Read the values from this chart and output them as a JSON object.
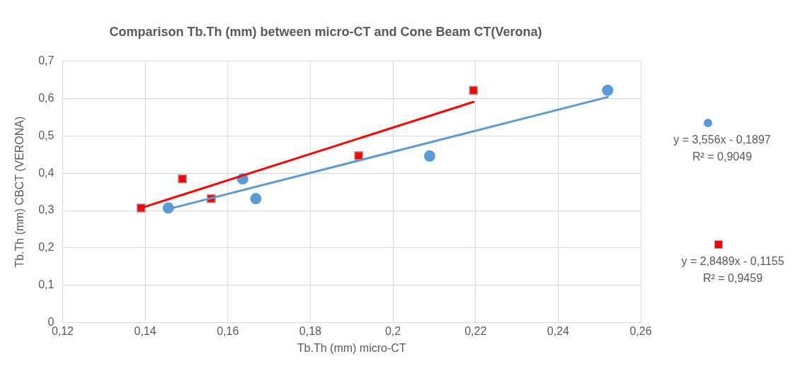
{
  "chart_data": {
    "type": "scatter",
    "title": "Comparison Tb.Th (mm) between micro-CT and Cone Beam CT(Verona)",
    "xlabel": "Tb.Th (mm) micro-CT",
    "ylabel": "Tb.Th (mm) CBCT (VERONA)",
    "series": [
      {
        "color": "#5b9bd5",
        "marker": "circle",
        "x": [
          0.1456,
          0.1636,
          0.1668,
          0.2089,
          0.252
        ],
        "values": [
          0.307,
          0.385,
          0.332,
          0.446,
          0.622
        ]
      },
      {
        "color": "#ff0000",
        "marker": "square",
        "x": [
          0.139,
          0.149,
          0.156,
          0.1917,
          0.2195
        ],
        "values": [
          0.307,
          0.385,
          0.332,
          0.447,
          0.622
        ]
      },
      {
        "type": "line",
        "color": "#5b9bd5",
        "marker": "none",
        "x": [
          0.1456,
          0.252
        ],
        "values": [
          0.304,
          0.604
        ]
      },
      {
        "type": "line",
        "color": "#ff0000",
        "marker": "none",
        "x": [
          0.139,
          0.2195
        ],
        "values": [
          0.307,
          0.591
        ]
      }
    ],
    "annotations": [
      "y = 3,556x - 0,1897",
      "R² = 0,9049",
      "y = 2,8489x - 0,1155",
      "R² = 0,9459"
    ],
    "xlim": [
      0.12,
      0.26
    ],
    "xticks": [
      {
        "value": 0.12,
        "label": "0,12"
      },
      {
        "value": 0.14,
        "label": "0,14"
      },
      {
        "value": 0.16,
        "label": "0,16"
      },
      {
        "value": 0.18,
        "label": "0,18"
      },
      {
        "value": 0.2,
        "label": "0,2"
      },
      {
        "value": 0.22,
        "label": "0,22"
      },
      {
        "value": 0.24,
        "label": "0,24"
      },
      {
        "value": 0.26,
        "label": "0,26"
      }
    ],
    "ylim": [
      0,
      0.7
    ],
    "yticks": [
      0,
      {
        "value": 0.1,
        "label": "0,1"
      },
      {
        "value": 0.2,
        "label": "0,2"
      },
      {
        "value": 0.3,
        "label": "0,3"
      },
      {
        "value": 0.4,
        "label": "0,4"
      },
      {
        "value": 0.5,
        "label": "0,5"
      },
      {
        "value": 0.6,
        "label": "0,6"
      },
      {
        "value": 0.7,
        "label": "0,7"
      }
    ],
    "grid": true
  }
}
